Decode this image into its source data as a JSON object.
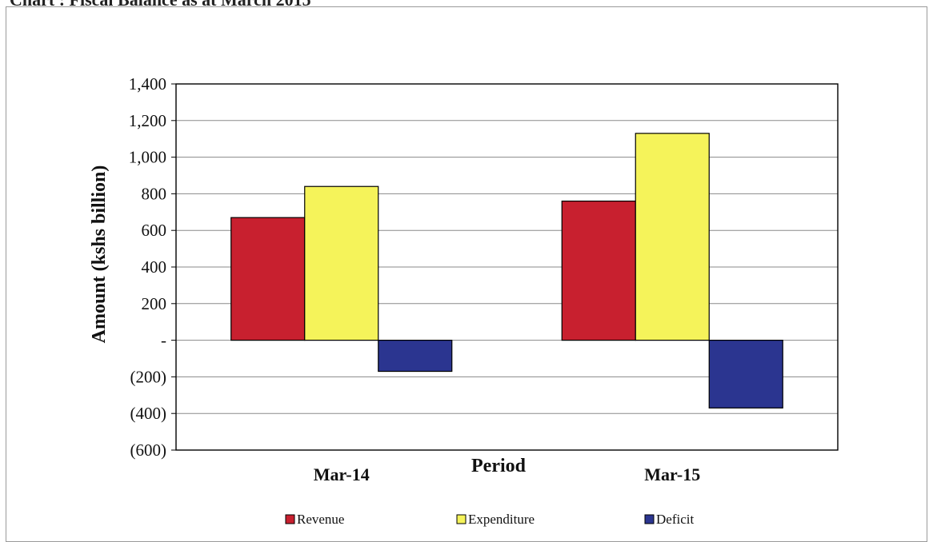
{
  "page_title": "Chart : Fiscal Balance as at March 2015",
  "chart_data": {
    "type": "bar",
    "title": "",
    "xlabel": "Period",
    "ylabel": "Amount (kshs billion)",
    "categories": [
      "Mar-14",
      "Mar-15"
    ],
    "series": [
      {
        "name": "Revenue",
        "values": [
          670,
          760
        ],
        "color": "#c8202f"
      },
      {
        "name": "Expenditure",
        "values": [
          840,
          1130
        ],
        "color": "#f5f35a"
      },
      {
        "name": "Deficit",
        "values": [
          -170,
          -370
        ],
        "color": "#2b3590"
      }
    ],
    "ylim": [
      -600,
      1400
    ],
    "yticks": [
      -600,
      -400,
      -200,
      0,
      200,
      400,
      600,
      800,
      1000,
      1200,
      1400
    ],
    "ytick_labels": [
      "(600)",
      "(400)",
      "(200)",
      "-",
      "200",
      "400",
      "600",
      "800",
      "1,000",
      "1,200",
      "1,400"
    ],
    "grid": true,
    "legend_position": "bottom"
  }
}
